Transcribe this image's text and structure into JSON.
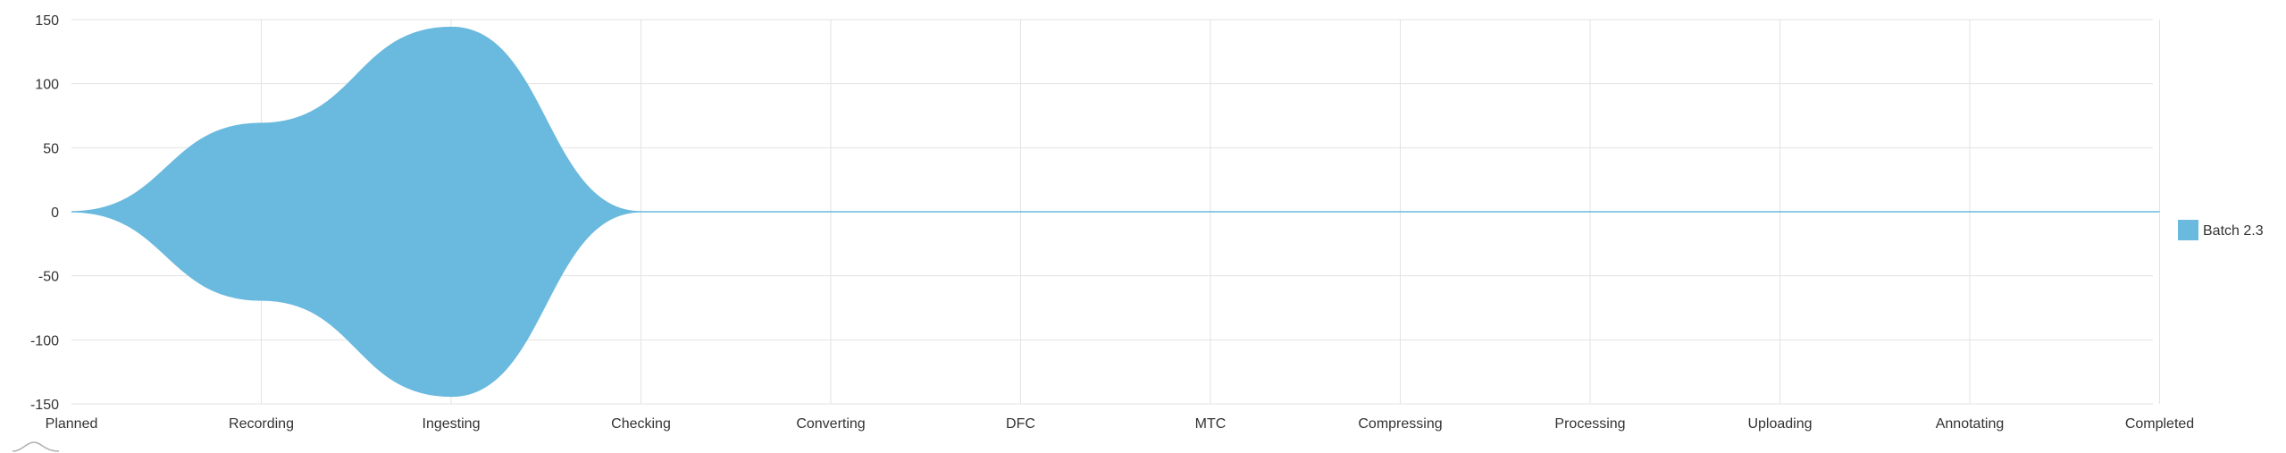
{
  "chart_data": {
    "type": "area",
    "subtype": "streamgraph (symmetric, wiggle-centered)",
    "categories": [
      "Planned",
      "Recording",
      "Ingesting",
      "Checking",
      "Converting",
      "DFC",
      "MTC",
      "Compressing",
      "Processing",
      "Uploading",
      "Annotating",
      "Completed"
    ],
    "series": [
      {
        "name": "Batch 2.3",
        "values": [
          0,
          138,
          288,
          0,
          0,
          0,
          0,
          0,
          0,
          0,
          0,
          0
        ]
      }
    ],
    "ylim": [
      -150,
      150
    ],
    "yticks": [
      150,
      100,
      50,
      0,
      -50,
      -100,
      -150
    ],
    "grid": true,
    "legend": "right",
    "colors": {
      "series": "#6ab9de",
      "grid": "#e3e3e3",
      "axis_text": "#333333"
    }
  }
}
